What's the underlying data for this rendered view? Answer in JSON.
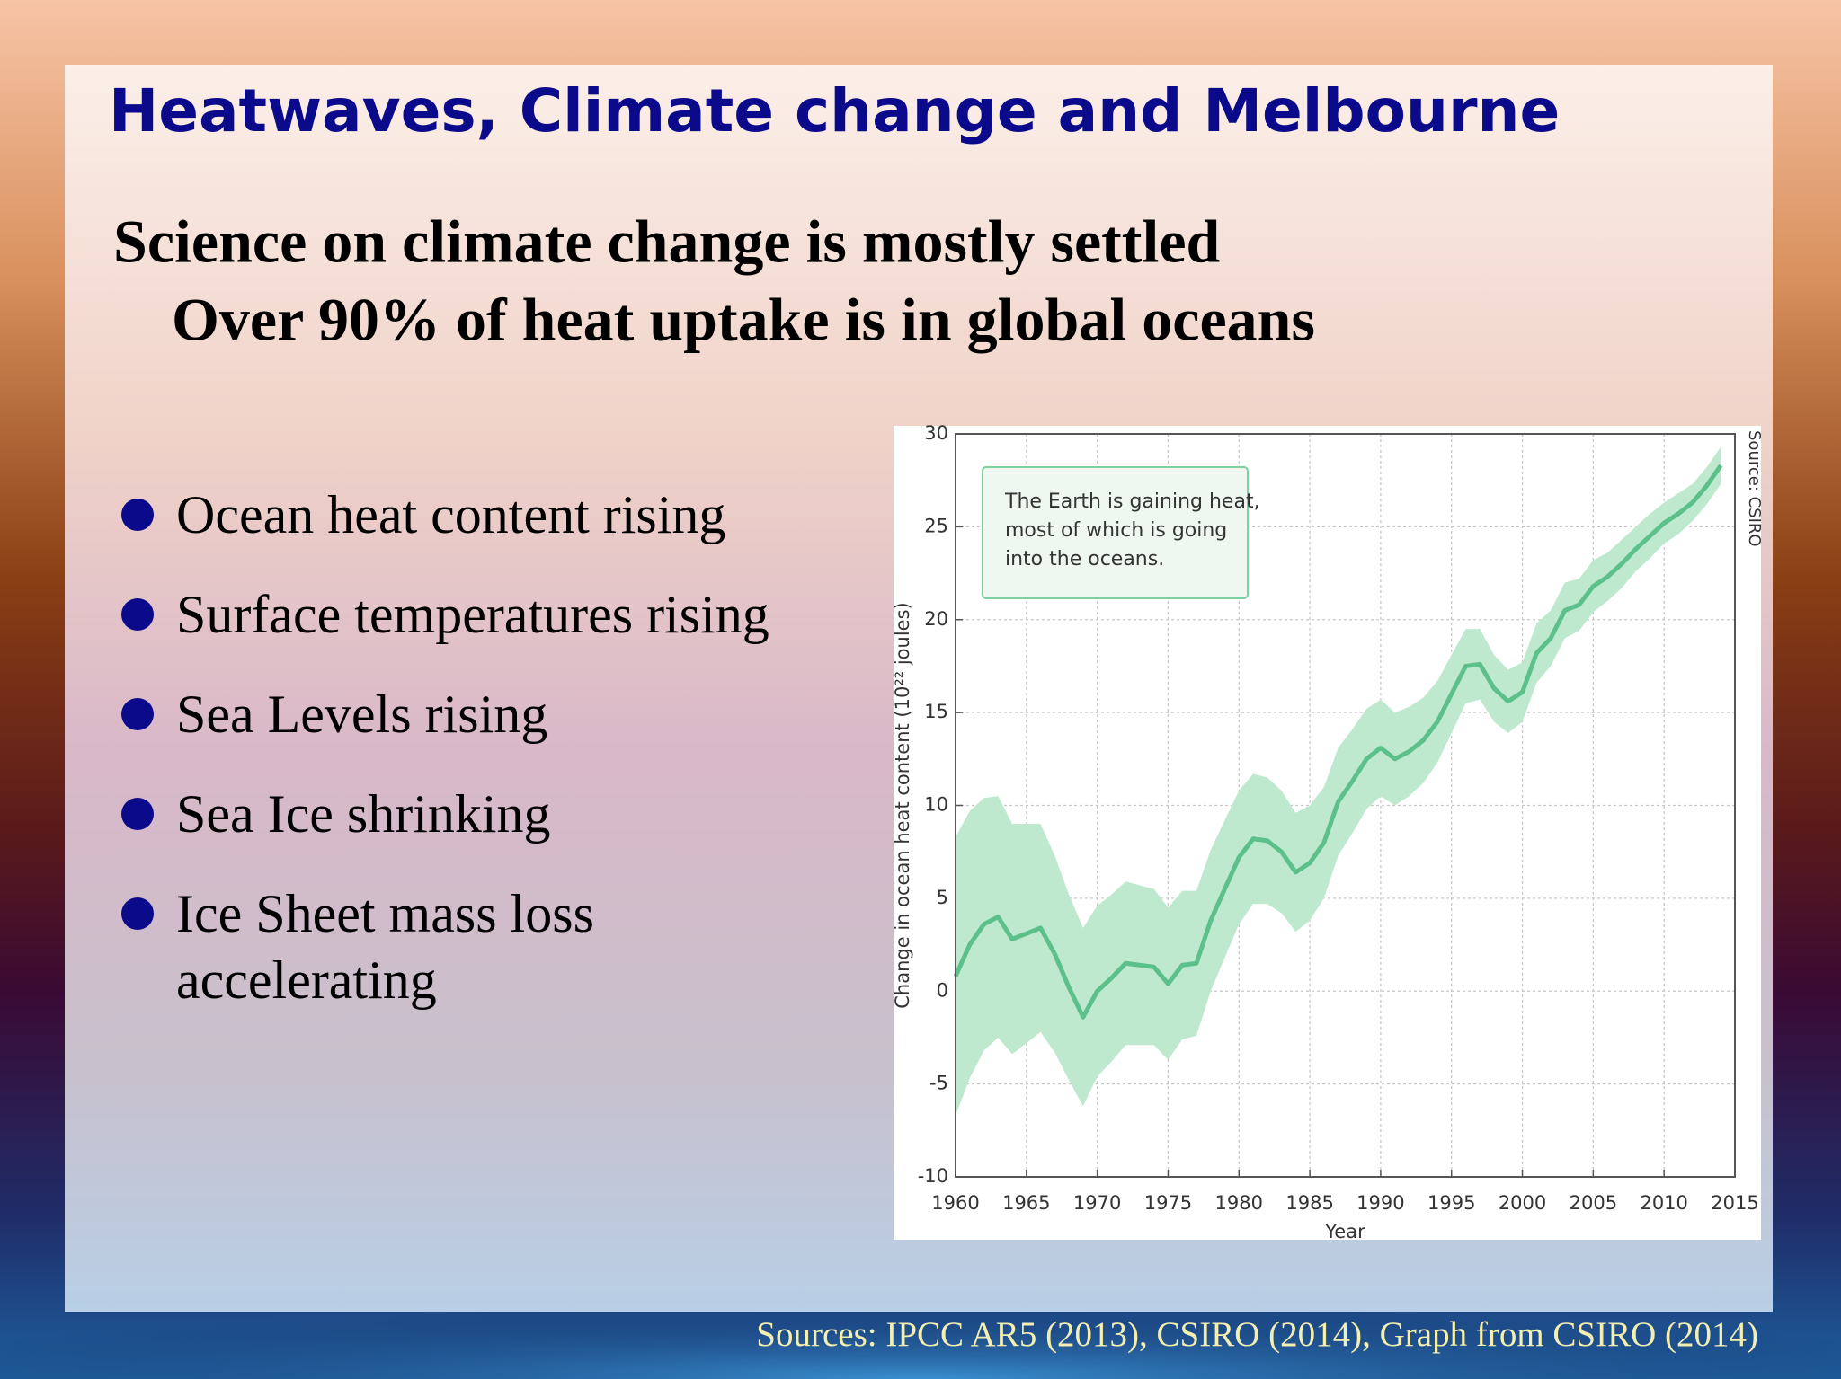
{
  "slide": {
    "title": "Heatwaves, Climate change and Melbourne",
    "subtitle": [
      "Science on climate change is mostly settled",
      "Over 90% of heat uptake is in global oceans"
    ],
    "bullets": [
      [
        "Ocean heat content rising"
      ],
      [
        "Surface temperatures rising"
      ],
      [
        "Sea Levels rising"
      ],
      [
        "Sea Ice shrinking"
      ],
      [
        "Ice Sheet mass loss",
        "accelerating"
      ]
    ],
    "footer": "Sources: IPCC AR5 (2013), CSIRO (2014), Graph from CSIRO (2014)"
  },
  "chart_data": {
    "type": "line",
    "x_label": "Year",
    "y_label": "Change in ocean heat content (10²² joules)",
    "annotation": [
      "The Earth is gaining heat,",
      "most of which is going",
      "into the oceans."
    ],
    "source": "Source: CSIRO",
    "x": [
      1960,
      1961,
      1962,
      1963,
      1964,
      1965,
      1966,
      1967,
      1968,
      1969,
      1970,
      1971,
      1972,
      1973,
      1974,
      1975,
      1976,
      1977,
      1978,
      1979,
      1980,
      1981,
      1982,
      1983,
      1984,
      1985,
      1986,
      1987,
      1988,
      1989,
      1990,
      1991,
      1992,
      1993,
      1994,
      1995,
      1996,
      1997,
      1998,
      1999,
      2000,
      2001,
      2002,
      2003,
      2004,
      2005,
      2006,
      2007,
      2008,
      2009,
      2010,
      2011,
      2012,
      2013,
      2014
    ],
    "series": [
      {
        "color": "#5cc08a",
        "values": [
          0.8,
          2.5,
          3.6,
          4.0,
          2.8,
          3.1,
          3.4,
          2.0,
          0.2,
          -1.4,
          0.0,
          0.7,
          1.5,
          1.4,
          1.3,
          0.4,
          1.4,
          1.5,
          3.8,
          5.5,
          7.2,
          8.2,
          8.1,
          7.5,
          6.4,
          6.9,
          8.0,
          10.2,
          11.3,
          12.5,
          13.1,
          12.5,
          12.9,
          13.5,
          14.5,
          16.0,
          17.5,
          17.6,
          16.3,
          15.6,
          16.1,
          18.2,
          19.0,
          20.5,
          20.8,
          21.8,
          22.3,
          23.0,
          23.8,
          24.5,
          25.2,
          25.7,
          26.3,
          27.2,
          28.3
        ]
      }
    ],
    "band": {
      "color": "#bfe9cf",
      "upper": [
        8.3,
        9.7,
        10.4,
        10.5,
        9.0,
        9.0,
        9.0,
        7.3,
        5.2,
        3.4,
        4.6,
        5.2,
        5.9,
        5.7,
        5.5,
        4.5,
        5.4,
        5.4,
        7.6,
        9.2,
        10.8,
        11.7,
        11.5,
        10.8,
        9.6,
        10.0,
        11.0,
        13.1,
        14.1,
        15.2,
        15.7,
        15.0,
        15.3,
        15.8,
        16.7,
        18.1,
        19.5,
        19.5,
        18.1,
        17.3,
        17.7,
        19.8,
        20.5,
        22.0,
        22.2,
        23.2,
        23.6,
        24.3,
        25.0,
        25.7,
        26.3,
        26.8,
        27.3,
        28.2,
        29.3
      ],
      "lower": [
        -6.7,
        -4.7,
        -3.2,
        -2.5,
        -3.4,
        -2.8,
        -2.2,
        -3.3,
        -4.8,
        -6.2,
        -4.6,
        -3.8,
        -2.9,
        -2.9,
        -2.9,
        -3.7,
        -2.6,
        -2.4,
        0.0,
        1.8,
        3.6,
        4.7,
        4.7,
        4.2,
        3.2,
        3.8,
        5.0,
        7.3,
        8.5,
        9.8,
        10.5,
        10.0,
        10.5,
        11.2,
        12.3,
        13.9,
        15.5,
        15.7,
        14.5,
        13.9,
        14.5,
        16.6,
        17.5,
        19.0,
        19.4,
        20.4,
        21.0,
        21.7,
        22.6,
        23.3,
        24.1,
        24.6,
        25.3,
        26.2,
        27.3
      ]
    },
    "xlim": [
      1960,
      2015
    ],
    "xticks": [
      1960,
      1965,
      1970,
      1975,
      1980,
      1985,
      1990,
      1995,
      2000,
      2005,
      2010,
      2015
    ],
    "ylim": [
      -10,
      30
    ],
    "yticks": [
      -10,
      -5,
      0,
      5,
      10,
      15,
      20,
      25,
      30
    ],
    "grid": true
  }
}
